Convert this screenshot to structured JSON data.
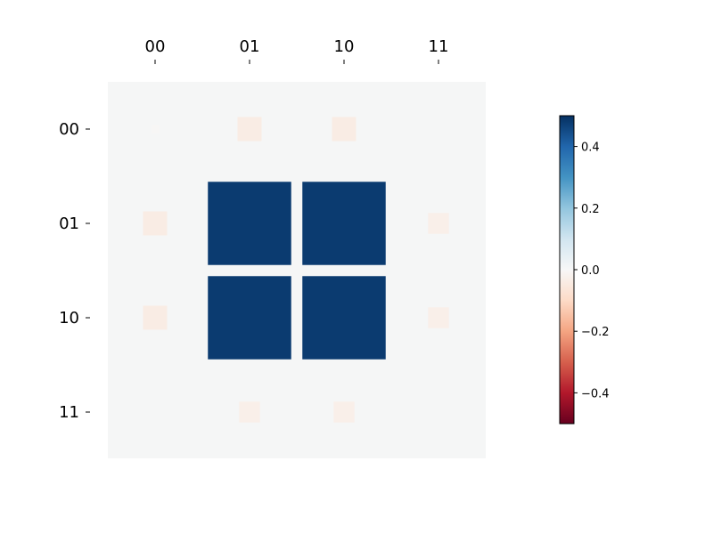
{
  "chart_data": {
    "type": "heatmap",
    "title": "",
    "xlabel": "",
    "ylabel": "",
    "x_ticks": [
      "00",
      "01",
      "10",
      "11"
    ],
    "y_ticks": [
      "00",
      "01",
      "10",
      "11"
    ],
    "cells": [
      {
        "row": 0,
        "col": 0,
        "value": -0.005
      },
      {
        "row": 0,
        "col": 1,
        "value": -0.04
      },
      {
        "row": 0,
        "col": 2,
        "value": -0.04
      },
      {
        "row": 0,
        "col": 3,
        "value": 0.0
      },
      {
        "row": 1,
        "col": 0,
        "value": -0.04
      },
      {
        "row": 1,
        "col": 1,
        "value": 0.48
      },
      {
        "row": 1,
        "col": 2,
        "value": 0.48
      },
      {
        "row": 1,
        "col": 3,
        "value": -0.03
      },
      {
        "row": 2,
        "col": 0,
        "value": -0.04
      },
      {
        "row": 2,
        "col": 1,
        "value": 0.48
      },
      {
        "row": 2,
        "col": 2,
        "value": 0.48
      },
      {
        "row": 2,
        "col": 3,
        "value": -0.03
      },
      {
        "row": 3,
        "col": 0,
        "value": 0.0
      },
      {
        "row": 3,
        "col": 1,
        "value": -0.03
      },
      {
        "row": 3,
        "col": 2,
        "value": -0.03
      },
      {
        "row": 3,
        "col": 3,
        "value": 0.0
      }
    ],
    "colorbar": {
      "colormap": "RdBu",
      "vmin": -0.5,
      "vmax": 0.5,
      "ticks": [
        0.4,
        0.2,
        0.0,
        -0.2,
        -0.4
      ],
      "tick_labels": [
        "0.4",
        "0.2",
        "0.0",
        "−0.2",
        "−0.4"
      ]
    },
    "background_color": "#f5f6f6",
    "grid": false,
    "x_ticks_position": "top"
  }
}
